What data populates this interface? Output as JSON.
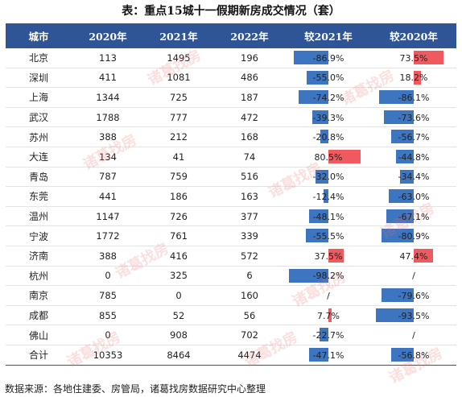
{
  "title": "表：重点15城十一假期新房成交情况（套）",
  "columns": [
    "城市",
    "2020年",
    "2021年",
    "2022年",
    "较2021年",
    "较2020年"
  ],
  "rows": [
    {
      "city": "北京",
      "y2020": "113",
      "y2021": "1495",
      "y2022": "196",
      "vs2021": "-86.9%",
      "vs2021_value": -86.9,
      "vs2020": "73.5%",
      "vs2020_value": 73.5
    },
    {
      "city": "深圳",
      "y2020": "411",
      "y2021": "1081",
      "y2022": "486",
      "vs2021": "-55.0%",
      "vs2021_value": -55.0,
      "vs2020": "18.2%",
      "vs2020_value": 18.2
    },
    {
      "city": "上海",
      "y2020": "1344",
      "y2021": "725",
      "y2022": "187",
      "vs2021": "-74.2%",
      "vs2021_value": -74.2,
      "vs2020": "-86.1%",
      "vs2020_value": -86.1
    },
    {
      "city": "武汉",
      "y2020": "1788",
      "y2021": "777",
      "y2022": "472",
      "vs2021": "-39.3%",
      "vs2021_value": -39.3,
      "vs2020": "-73.6%",
      "vs2020_value": -73.6
    },
    {
      "city": "苏州",
      "y2020": "388",
      "y2021": "212",
      "y2022": "168",
      "vs2021": "-20.8%",
      "vs2021_value": -20.8,
      "vs2020": "-56.7%",
      "vs2020_value": -56.7
    },
    {
      "city": "大连",
      "y2020": "134",
      "y2021": "41",
      "y2022": "74",
      "vs2021": "80.5%",
      "vs2021_value": 80.5,
      "vs2020": "-44.8%",
      "vs2020_value": -44.8
    },
    {
      "city": "青岛",
      "y2020": "787",
      "y2021": "759",
      "y2022": "516",
      "vs2021": "-32.0%",
      "vs2021_value": -32.0,
      "vs2020": "-34.4%",
      "vs2020_value": -34.4
    },
    {
      "city": "东莞",
      "y2020": "441",
      "y2021": "186",
      "y2022": "163",
      "vs2021": "-12.4%",
      "vs2021_value": -12.4,
      "vs2020": "-63.0%",
      "vs2020_value": -63.0
    },
    {
      "city": "温州",
      "y2020": "1147",
      "y2021": "726",
      "y2022": "377",
      "vs2021": "-48.1%",
      "vs2021_value": -48.1,
      "vs2020": "-67.1%",
      "vs2020_value": -67.1
    },
    {
      "city": "宁波",
      "y2020": "1772",
      "y2021": "761",
      "y2022": "339",
      "vs2021": "-55.5%",
      "vs2021_value": -55.5,
      "vs2020": "-80.9%",
      "vs2020_value": -80.9
    },
    {
      "city": "济南",
      "y2020": "388",
      "y2021": "416",
      "y2022": "572",
      "vs2021": "37.5%",
      "vs2021_value": 37.5,
      "vs2020": "47.4%",
      "vs2020_value": 47.4
    },
    {
      "city": "杭州",
      "y2020": "0",
      "y2021": "325",
      "y2022": "6",
      "vs2021": "-98.2%",
      "vs2021_value": -98.2,
      "vs2020": "/",
      "vs2020_value": null
    },
    {
      "city": "南京",
      "y2020": "785",
      "y2021": "0",
      "y2022": "160",
      "vs2021": "/",
      "vs2021_value": null,
      "vs2020": "-79.6%",
      "vs2020_value": -79.6
    },
    {
      "city": "成都",
      "y2020": "855",
      "y2021": "52",
      "y2022": "56",
      "vs2021": "7.7%",
      "vs2021_value": 7.7,
      "vs2020": "-93.5%",
      "vs2020_value": -93.5
    },
    {
      "city": "佛山",
      "y2020": "0",
      "y2021": "908",
      "y2022": "702",
      "vs2021": "-22.7%",
      "vs2021_value": -22.7,
      "vs2020": "/",
      "vs2020_value": null
    },
    {
      "city": "合计",
      "y2020": "10353",
      "y2021": "8464",
      "y2022": "4474",
      "vs2021": "-47.1%",
      "vs2021_value": -47.1,
      "vs2020": "-56.8%",
      "vs2020_value": -56.8
    }
  ],
  "source": "数据来源：各地住建委、房管局，诸葛找房数据研究中心整理",
  "watermark": "诸葛找房",
  "colors": {
    "header": "#2f5597",
    "negative_bar": "#3e75c0",
    "positive_bar": "#f05a5f"
  },
  "chart_data": {
    "type": "table",
    "title": "表：重点15城十一假期新房成交情况（套）",
    "columns": [
      "城市",
      "2020年",
      "2021年",
      "2022年",
      "较2021年",
      "较2020年"
    ],
    "categories": [
      "北京",
      "深圳",
      "上海",
      "武汉",
      "苏州",
      "大连",
      "青岛",
      "东莞",
      "温州",
      "宁波",
      "济南",
      "杭州",
      "南京",
      "成都",
      "佛山",
      "合计"
    ],
    "series": [
      {
        "name": "2020年",
        "values": [
          113,
          411,
          1344,
          1788,
          388,
          134,
          787,
          441,
          1147,
          1772,
          388,
          0,
          785,
          855,
          0,
          10353
        ]
      },
      {
        "name": "2021年",
        "values": [
          1495,
          1081,
          725,
          777,
          212,
          41,
          759,
          186,
          726,
          761,
          416,
          325,
          0,
          52,
          908,
          8464
        ]
      },
      {
        "name": "2022年",
        "values": [
          196,
          486,
          187,
          472,
          168,
          74,
          516,
          163,
          377,
          339,
          572,
          6,
          160,
          56,
          702,
          4474
        ]
      },
      {
        "name": "较2021年",
        "values": [
          -86.9,
          -55.0,
          -74.2,
          -39.3,
          -20.8,
          80.5,
          -32.0,
          -12.4,
          -48.1,
          -55.5,
          37.5,
          -98.2,
          null,
          7.7,
          -22.7,
          -47.1
        ]
      },
      {
        "name": "较2020年",
        "values": [
          73.5,
          18.2,
          -86.1,
          -73.6,
          -56.7,
          -44.8,
          -34.4,
          -63.0,
          -67.1,
          -80.9,
          47.4,
          null,
          -79.6,
          -93.5,
          null,
          -56.8
        ]
      }
    ]
  }
}
